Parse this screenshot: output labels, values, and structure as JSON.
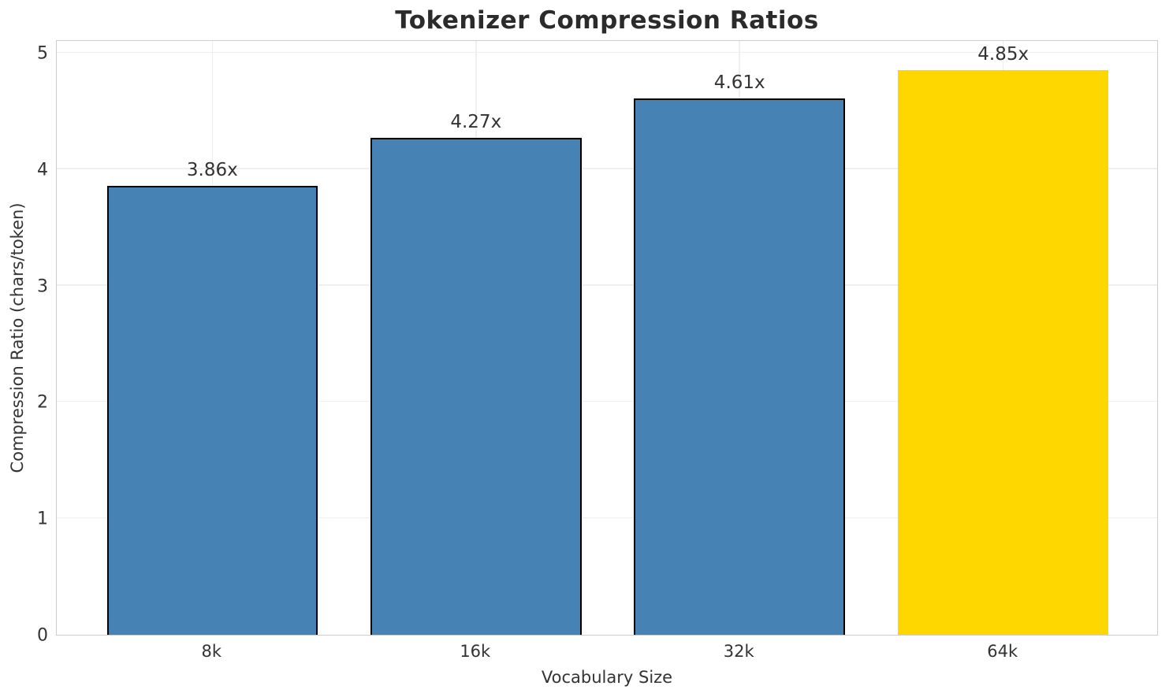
{
  "chart_data": {
    "type": "bar",
    "title": "Tokenizer Compression Ratios",
    "xlabel": "Vocabulary Size",
    "ylabel": "Compression Ratio (chars/token)",
    "categories": [
      "8k",
      "16k",
      "32k",
      "64k"
    ],
    "values": [
      3.86,
      4.27,
      4.61,
      4.85
    ],
    "bar_labels": [
      "3.86x",
      "4.27x",
      "4.61x",
      "4.85x"
    ],
    "ylim": [
      0,
      5
    ],
    "yticks": [
      0,
      1,
      2,
      3,
      4,
      5
    ],
    "grid": true,
    "legend": "none",
    "highlight_index": 3,
    "colors": {
      "bar_default": "#4682B4",
      "bar_highlight": "#FFD700",
      "bar_edge": "#000000",
      "grid_line": "#efefef",
      "spine": "#cccccc",
      "title_text": "#2b2b2b",
      "tick_text": "#333333"
    }
  }
}
